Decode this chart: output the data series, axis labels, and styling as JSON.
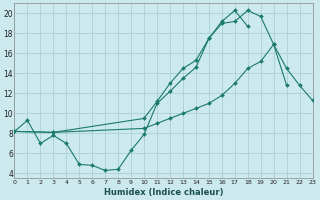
{
  "xlabel": "Humidex (Indice chaleur)",
  "xlim": [
    0,
    23
  ],
  "ylim": [
    3.5,
    21.0
  ],
  "xticks": [
    0,
    1,
    2,
    3,
    4,
    5,
    6,
    7,
    8,
    9,
    10,
    11,
    12,
    13,
    14,
    15,
    16,
    17,
    18,
    19,
    20,
    21,
    22,
    23
  ],
  "yticks": [
    4,
    6,
    8,
    10,
    12,
    14,
    16,
    18,
    20
  ],
  "background_color": "#cce9ed",
  "grid_color": "#aacfd4",
  "line_color": "#1a7a6e",
  "line1_x": [
    0,
    1,
    2,
    3,
    4,
    5,
    6,
    7,
    8,
    9,
    10,
    11,
    12,
    13,
    14,
    15,
    16,
    17,
    18,
    19,
    20,
    21
  ],
  "line1_y": [
    8.2,
    9.3,
    7.0,
    7.8,
    7.0,
    4.9,
    4.8,
    4.3,
    4.4,
    6.3,
    7.9,
    11.0,
    12.2,
    13.5,
    14.6,
    17.5,
    19.0,
    19.2,
    20.3,
    19.7,
    16.9,
    12.8
  ],
  "line2_x": [
    0,
    3,
    10,
    11,
    12,
    13,
    14,
    15,
    16,
    17,
    18,
    19,
    20,
    21,
    22,
    23
  ],
  "line2_y": [
    8.2,
    8.1,
    8.5,
    9.0,
    9.5,
    10.0,
    10.5,
    11.0,
    11.8,
    13.0,
    14.5,
    15.2,
    16.9,
    14.5,
    12.8,
    11.3
  ],
  "line3_x": [
    0,
    3,
    10,
    11,
    12,
    13,
    14,
    15,
    16,
    17,
    18
  ],
  "line3_y": [
    8.2,
    8.1,
    9.5,
    11.2,
    13.0,
    14.5,
    15.3,
    17.5,
    19.2,
    20.3,
    18.7
  ]
}
